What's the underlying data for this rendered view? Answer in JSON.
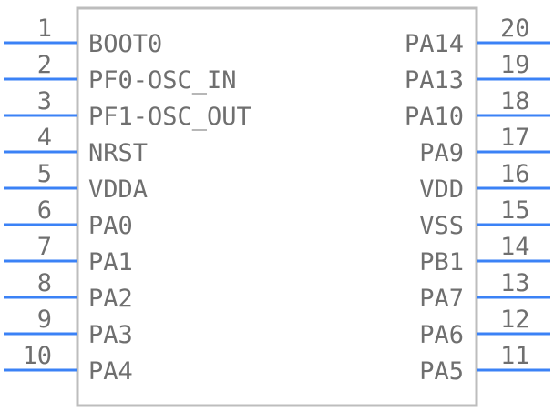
{
  "colors": {
    "pin_line": "#3b82f6",
    "body_outline": "#bdbdbd",
    "text": "#6f6f6f",
    "background": "#ffffff"
  },
  "left_pins": [
    {
      "number": "1",
      "name": "BOOT0"
    },
    {
      "number": "2",
      "name": "PF0-OSC_IN"
    },
    {
      "number": "3",
      "name": "PF1-OSC_OUT"
    },
    {
      "number": "4",
      "name": "NRST"
    },
    {
      "number": "5",
      "name": "VDDA"
    },
    {
      "number": "6",
      "name": "PA0"
    },
    {
      "number": "7",
      "name": "PA1"
    },
    {
      "number": "8",
      "name": "PA2"
    },
    {
      "number": "9",
      "name": "PA3"
    },
    {
      "number": "10",
      "name": "PA4"
    }
  ],
  "right_pins": [
    {
      "number": "20",
      "name": "PA14"
    },
    {
      "number": "19",
      "name": "PA13"
    },
    {
      "number": "18",
      "name": "PA10"
    },
    {
      "number": "17",
      "name": "PA9"
    },
    {
      "number": "16",
      "name": "VDD"
    },
    {
      "number": "15",
      "name": "VSS"
    },
    {
      "number": "14",
      "name": "PB1"
    },
    {
      "number": "13",
      "name": "PA7"
    },
    {
      "number": "12",
      "name": "PA6"
    },
    {
      "number": "11",
      "name": "PA5"
    }
  ]
}
